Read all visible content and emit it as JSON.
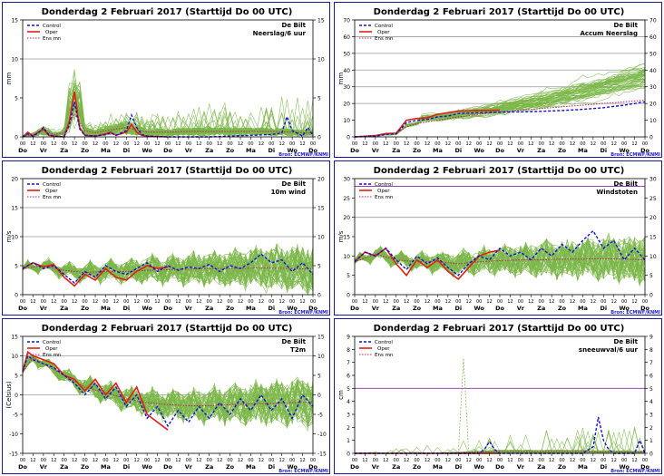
{
  "common": {
    "title": "Donderdag  2 Februari 2017    (Starttijd Do 00 UTC)",
    "source": "Bron: ECMWF/KNMI",
    "hour_labels": [
      "00",
      "12"
    ],
    "day_labels": [
      "Do",
      "Vr",
      "Za",
      "Zo",
      "Ma",
      "Di",
      "Wo",
      "Do",
      "Vr",
      "Za",
      "Zo",
      "Ma",
      "Di",
      "Wo",
      "Do"
    ],
    "legend": {
      "control": "Control",
      "oper": "Oper",
      "ensmn": "Ens mn"
    },
    "location": "De Bilt",
    "colors": {
      "control": "#1010d8",
      "oper": "#e02010",
      "ensmn": "#c02060",
      "members": "#7ab648",
      "refline": "#a040c0",
      "frame": "#1a1a9a"
    }
  },
  "chart_data": [
    {
      "id": "p1",
      "type": "line",
      "subtitle": "Neerslag/6 uur",
      "ylabel": "mm",
      "ylim": [
        0,
        15
      ],
      "yticks": [
        0,
        5,
        10,
        15
      ],
      "gridlines": [
        10
      ],
      "x_days": [
        0,
        14
      ],
      "control": [
        [
          0,
          0
        ],
        [
          0.25,
          0.4
        ],
        [
          0.5,
          0.1
        ],
        [
          0.75,
          0.5
        ],
        [
          1,
          1.2
        ],
        [
          1.25,
          0.3
        ],
        [
          1.5,
          0.1
        ],
        [
          2,
          0
        ],
        [
          2.25,
          1.5
        ],
        [
          2.5,
          4.5
        ],
        [
          2.75,
          1.0
        ],
        [
          3,
          0.2
        ],
        [
          3.5,
          0.1
        ],
        [
          4,
          0.3
        ],
        [
          4.25,
          0.5
        ],
        [
          4.5,
          0.2
        ],
        [
          5,
          0.8
        ],
        [
          5.25,
          2.8
        ],
        [
          5.5,
          1.2
        ],
        [
          5.75,
          0.3
        ],
        [
          6,
          0.1
        ],
        [
          7,
          0
        ],
        [
          8,
          0
        ],
        [
          9,
          0
        ],
        [
          10,
          0.1
        ],
        [
          11,
          0.2
        ],
        [
          12,
          0.3
        ],
        [
          12.5,
          0.5
        ],
        [
          12.75,
          2.6
        ],
        [
          13,
          0.8
        ],
        [
          13.5,
          0.1
        ],
        [
          13.75,
          1.2
        ],
        [
          14,
          0.2
        ]
      ],
      "oper": [
        [
          0,
          0
        ],
        [
          0.25,
          0.6
        ],
        [
          0.5,
          0.1
        ],
        [
          0.75,
          0.6
        ],
        [
          1,
          1.0
        ],
        [
          1.25,
          0.2
        ],
        [
          1.5,
          0.1
        ],
        [
          2,
          0
        ],
        [
          2.25,
          2.0
        ],
        [
          2.5,
          5.8
        ],
        [
          2.75,
          1.2
        ],
        [
          3,
          0.2
        ],
        [
          3.5,
          0.1
        ],
        [
          4,
          0.4
        ],
        [
          4.25,
          0.6
        ],
        [
          4.5,
          0.2
        ],
        [
          5,
          0.6
        ],
        [
          5.25,
          1.6
        ],
        [
          5.5,
          0.6
        ],
        [
          5.75,
          0.2
        ],
        [
          6,
          0.1
        ],
        [
          7,
          0
        ]
      ],
      "ensmn": [
        [
          0,
          0.1
        ],
        [
          0.5,
          0.3
        ],
        [
          1,
          0.8
        ],
        [
          1.5,
          0.3
        ],
        [
          2,
          0.5
        ],
        [
          2.5,
          3.0
        ],
        [
          3,
          0.8
        ],
        [
          3.5,
          0.5
        ],
        [
          4,
          0.8
        ],
        [
          5,
          1.2
        ],
        [
          5.5,
          0.9
        ],
        [
          6,
          0.6
        ],
        [
          7,
          0.6
        ],
        [
          8,
          0.7
        ],
        [
          9,
          0.7
        ],
        [
          10,
          0.7
        ],
        [
          11,
          0.7
        ],
        [
          12,
          0.7
        ],
        [
          13,
          0.6
        ],
        [
          14,
          0.5
        ]
      ],
      "members": {
        "count": 50,
        "seed": 11
      }
    },
    {
      "id": "p2",
      "type": "line",
      "subtitle": "Accum Neerslag",
      "ylabel": "mm",
      "ylim": [
        0,
        70
      ],
      "yticks": [
        0,
        10,
        20,
        30,
        40,
        50,
        60,
        70
      ],
      "gridlines": [
        20,
        30,
        40,
        50,
        60,
        70
      ],
      "x_days": [
        0,
        14
      ],
      "control": [
        [
          0,
          0
        ],
        [
          1,
          0.5
        ],
        [
          1.5,
          1.5
        ],
        [
          2,
          1.8
        ],
        [
          2.5,
          8.5
        ],
        [
          3,
          10
        ],
        [
          3.5,
          10.5
        ],
        [
          4,
          12
        ],
        [
          4.5,
          12.5
        ],
        [
          5,
          14
        ],
        [
          6,
          14.5
        ],
        [
          7,
          14.8
        ],
        [
          8,
          15.0
        ],
        [
          9,
          15.3
        ],
        [
          10,
          15.8
        ],
        [
          11,
          16.5
        ],
        [
          12,
          17.5
        ],
        [
          13,
          19
        ],
        [
          14,
          21
        ]
      ],
      "oper": [
        [
          0,
          0
        ],
        [
          1,
          0.8
        ],
        [
          1.5,
          2.0
        ],
        [
          2,
          2.2
        ],
        [
          2.5,
          10
        ],
        [
          3,
          11
        ],
        [
          3.5,
          11.5
        ],
        [
          4,
          13.5
        ],
        [
          4.5,
          14.5
        ],
        [
          5,
          15.5
        ],
        [
          6,
          15.8
        ],
        [
          7,
          16
        ]
      ],
      "ensmn": [
        [
          0,
          0.1
        ],
        [
          1,
          1.0
        ],
        [
          2,
          2.2
        ],
        [
          2.5,
          6
        ],
        [
          3,
          8
        ],
        [
          4,
          10
        ],
        [
          5,
          12
        ],
        [
          6,
          13.5
        ],
        [
          7,
          15
        ],
        [
          8,
          16
        ],
        [
          9,
          17
        ],
        [
          10,
          18
        ],
        [
          11,
          19
        ],
        [
          12,
          20
        ],
        [
          13,
          21
        ],
        [
          14,
          22
        ]
      ],
      "members": {
        "count": 50,
        "seed": 23
      }
    },
    {
      "id": "p3",
      "type": "line",
      "subtitle": "10m wind",
      "ylabel": "m/s",
      "ylim": [
        0,
        20
      ],
      "yticks": [
        0,
        5,
        10,
        15,
        20
      ],
      "gridlines": [
        10,
        15
      ],
      "x_days": [
        0,
        14
      ],
      "control": [
        [
          0,
          4.5
        ],
        [
          0.5,
          5.5
        ],
        [
          1,
          4.5
        ],
        [
          1.5,
          5.0
        ],
        [
          2,
          3.5
        ],
        [
          2.5,
          2.0
        ],
        [
          3,
          4.0
        ],
        [
          3.5,
          3.0
        ],
        [
          4,
          5.0
        ],
        [
          4.5,
          4.0
        ],
        [
          5,
          3.5
        ],
        [
          5.5,
          4.5
        ],
        [
          6,
          5.5
        ],
        [
          6.5,
          4.0
        ],
        [
          7,
          5.0
        ],
        [
          7.5,
          4.2
        ],
        [
          8,
          4.8
        ],
        [
          8.5,
          4.5
        ],
        [
          9,
          5.2
        ],
        [
          9.5,
          4.0
        ],
        [
          10,
          5.0
        ],
        [
          10.5,
          4.5
        ],
        [
          11,
          5.5
        ],
        [
          11.5,
          7.0
        ],
        [
          12,
          5.5
        ],
        [
          12.5,
          6.0
        ],
        [
          13,
          4.0
        ],
        [
          13.5,
          5.5
        ],
        [
          14,
          3.5
        ]
      ],
      "oper": [
        [
          0,
          4.5
        ],
        [
          0.5,
          5.5
        ],
        [
          1,
          4.8
        ],
        [
          1.5,
          5.2
        ],
        [
          2,
          3.0
        ],
        [
          2.5,
          1.5
        ],
        [
          3,
          3.5
        ],
        [
          3.5,
          2.5
        ],
        [
          4,
          4.5
        ],
        [
          4.5,
          3.0
        ],
        [
          5,
          2.5
        ],
        [
          5.5,
          4.0
        ],
        [
          6,
          5.0
        ],
        [
          6.5,
          4.5
        ],
        [
          7,
          4.8
        ]
      ],
      "ensmn": [
        [
          0,
          4.5
        ],
        [
          1,
          5.0
        ],
        [
          2,
          4.2
        ],
        [
          3,
          3.8
        ],
        [
          4,
          4.0
        ],
        [
          5,
          4.0
        ],
        [
          6,
          4.2
        ],
        [
          7,
          4.3
        ],
        [
          8,
          4.4
        ],
        [
          9,
          4.5
        ],
        [
          10,
          4.5
        ],
        [
          11,
          4.6
        ],
        [
          12,
          4.6
        ],
        [
          13,
          4.5
        ],
        [
          14,
          4.4
        ]
      ],
      "members": {
        "count": 50,
        "seed": 37
      }
    },
    {
      "id": "p4",
      "type": "line",
      "subtitle": "Windstoten",
      "ylabel": "m/s",
      "ylim": [
        0,
        30
      ],
      "yticks": [
        0,
        5,
        10,
        15,
        20,
        25,
        30
      ],
      "gridlines": [
        20
      ],
      "reflines": [
        28
      ],
      "x_days": [
        0,
        14
      ],
      "control": [
        [
          0,
          8.5
        ],
        [
          0.5,
          11
        ],
        [
          1,
          10
        ],
        [
          1.5,
          12
        ],
        [
          2,
          9
        ],
        [
          2.5,
          6.5
        ],
        [
          3,
          10
        ],
        [
          3.5,
          8
        ],
        [
          4,
          9.5
        ],
        [
          4.5,
          7
        ],
        [
          5,
          5
        ],
        [
          5.5,
          8
        ],
        [
          6,
          10
        ],
        [
          6.5,
          9
        ],
        [
          7,
          12
        ],
        [
          7.5,
          10
        ],
        [
          8,
          11
        ],
        [
          8.5,
          9
        ],
        [
          9,
          12
        ],
        [
          9.5,
          10
        ],
        [
          10,
          13
        ],
        [
          10.5,
          11
        ],
        [
          11,
          14
        ],
        [
          11.5,
          16.5
        ],
        [
          12,
          12
        ],
        [
          12.5,
          14
        ],
        [
          13,
          9
        ],
        [
          13.5,
          12
        ],
        [
          14,
          9
        ]
      ],
      "oper": [
        [
          0,
          8.5
        ],
        [
          0.5,
          11
        ],
        [
          1,
          10
        ],
        [
          1.5,
          12
        ],
        [
          2,
          8
        ],
        [
          2.5,
          5
        ],
        [
          3,
          9
        ],
        [
          3.5,
          7
        ],
        [
          4,
          9
        ],
        [
          4.5,
          6
        ],
        [
          5,
          4
        ],
        [
          5.5,
          7
        ],
        [
          6,
          10
        ],
        [
          6.5,
          11
        ],
        [
          7,
          11.5
        ]
      ],
      "ensmn": [
        [
          0,
          8.5
        ],
        [
          1,
          10.5
        ],
        [
          2,
          9
        ],
        [
          3,
          8.5
        ],
        [
          4,
          8.5
        ],
        [
          5,
          8
        ],
        [
          6,
          8.5
        ],
        [
          7,
          8.8
        ],
        [
          8,
          9
        ],
        [
          9,
          9
        ],
        [
          10,
          9.2
        ],
        [
          11,
          9.2
        ],
        [
          12,
          9.3
        ],
        [
          13,
          9.2
        ],
        [
          14,
          9
        ]
      ],
      "members": {
        "count": 50,
        "seed": 53
      }
    },
    {
      "id": "p5",
      "type": "line",
      "subtitle": "T2m",
      "ylabel": "(Celsius)",
      "ylim": [
        -15,
        15
      ],
      "yticks": [
        -15,
        -10,
        -5,
        0,
        5,
        10,
        15
      ],
      "gridlines": [
        0,
        10
      ],
      "x_days": [
        0,
        14
      ],
      "control": [
        [
          0,
          6
        ],
        [
          0.25,
          10
        ],
        [
          0.5,
          9
        ],
        [
          1,
          8
        ],
        [
          1.5,
          7
        ],
        [
          2,
          5
        ],
        [
          2.5,
          3
        ],
        [
          3,
          0
        ],
        [
          3.5,
          3
        ],
        [
          4,
          -1
        ],
        [
          4.5,
          2
        ],
        [
          5,
          -3
        ],
        [
          5.5,
          0
        ],
        [
          6,
          -6
        ],
        [
          6.5,
          -3
        ],
        [
          7,
          -8
        ],
        [
          7.5,
          -4
        ],
        [
          8,
          -7
        ],
        [
          8.5,
          -3
        ],
        [
          9,
          -6
        ],
        [
          9.5,
          -2
        ],
        [
          10,
          -5
        ],
        [
          10.5,
          -1
        ],
        [
          11,
          -4
        ],
        [
          11.5,
          0
        ],
        [
          12,
          -4
        ],
        [
          12.5,
          -1
        ],
        [
          13,
          -6
        ],
        [
          13.5,
          0
        ],
        [
          14,
          -3
        ]
      ],
      "oper": [
        [
          0,
          6
        ],
        [
          0.25,
          11
        ],
        [
          0.5,
          10
        ],
        [
          1,
          9
        ],
        [
          1.5,
          8
        ],
        [
          2,
          5
        ],
        [
          2.5,
          4
        ],
        [
          3,
          1
        ],
        [
          3.5,
          4
        ],
        [
          4,
          0
        ],
        [
          4.5,
          3
        ],
        [
          5,
          -2
        ],
        [
          5.5,
          2
        ],
        [
          6,
          -5
        ],
        [
          6.5,
          -7
        ],
        [
          7,
          -9
        ]
      ],
      "ensmn": [
        [
          0,
          6
        ],
        [
          0.5,
          9.5
        ],
        [
          1,
          8
        ],
        [
          2,
          5
        ],
        [
          3,
          2
        ],
        [
          4,
          0.5
        ],
        [
          5,
          -1
        ],
        [
          6,
          -2
        ],
        [
          7,
          -2.5
        ],
        [
          8,
          -2.8
        ],
        [
          9,
          -2.8
        ],
        [
          10,
          -2.5
        ],
        [
          11,
          -2.3
        ],
        [
          12,
          -2.2
        ],
        [
          13,
          -2
        ],
        [
          14,
          -1.8
        ]
      ],
      "members": {
        "count": 50,
        "seed": 71
      }
    },
    {
      "id": "p6",
      "type": "line",
      "subtitle": "sneeuwval/6 uur",
      "ylabel": "cm",
      "ylim": [
        0,
        9
      ],
      "yticks": [
        0,
        1,
        2,
        3,
        4,
        5,
        6,
        7,
        8,
        9
      ],
      "gridlines": [],
      "reflines": [
        5
      ],
      "x_days": [
        0,
        14
      ],
      "control": [
        [
          0,
          0
        ],
        [
          6,
          0
        ],
        [
          6.25,
          0.3
        ],
        [
          6.5,
          0.9
        ],
        [
          6.75,
          0.3
        ],
        [
          7,
          0
        ],
        [
          11,
          0
        ],
        [
          11.5,
          0.5
        ],
        [
          11.75,
          2.8
        ],
        [
          12,
          1.0
        ],
        [
          12.25,
          0.3
        ],
        [
          12.5,
          0
        ],
        [
          13.5,
          0
        ],
        [
          13.75,
          1.0
        ],
        [
          14,
          0
        ]
      ],
      "oper": [
        [
          0,
          0
        ],
        [
          7,
          0
        ]
      ],
      "ensmn": [
        [
          0,
          0
        ],
        [
          4,
          0
        ],
        [
          5,
          0.05
        ],
        [
          6,
          0.1
        ],
        [
          7,
          0.15
        ],
        [
          8,
          0.15
        ],
        [
          9,
          0.15
        ],
        [
          10,
          0.15
        ],
        [
          11,
          0.15
        ],
        [
          12,
          0.12
        ],
        [
          13,
          0.12
        ],
        [
          14,
          0.1
        ]
      ],
      "members": {
        "count": 50,
        "seed": 97
      }
    }
  ]
}
